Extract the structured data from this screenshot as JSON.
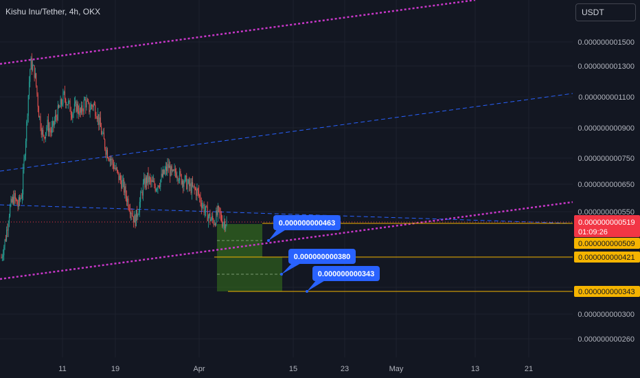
{
  "header": {
    "title": "Kishu Inu/Tether, 4h, OKX"
  },
  "currency_button": {
    "label": "USDT"
  },
  "colors": {
    "background": "#131722",
    "grid": "#1e222d",
    "candle_up": "#26a69a",
    "candle_down": "#ef5350",
    "channel": "#c837c8",
    "midline": "#2962ff",
    "level": "#f5b400",
    "callout": "#2962ff",
    "current_price": "#f23645",
    "target_zone": "#2e5c1e"
  },
  "chart_data": {
    "type": "candlestick",
    "pair": "Kishu Inu/Tether",
    "timeframe": "4h",
    "exchange": "OKX",
    "grid": true,
    "y_tick_labels": [
      "0.000000001500",
      "0.000000001300",
      "0.000000001100",
      "0.000000000900",
      "0.000000000750",
      "0.000000000650",
      "0.000000000550",
      "0.000000000300",
      "0.000000000260"
    ],
    "x_tick_labels": [
      "11",
      "19",
      "Apr",
      "15",
      "23",
      "May",
      "13",
      "21"
    ],
    "current_price": {
      "value": "0.000000000519",
      "countdown": "01:09:26"
    },
    "level_labels": [
      "0.000000000509",
      "0.000000000421",
      "0.000000000343"
    ],
    "callouts": [
      "0.000000000463",
      "0.000000000380",
      "0.000000000343"
    ],
    "price_path": [
      4.2e-10,
      4.7e-10,
      5.6e-10,
      6e-10,
      5.7e-10,
      6.2e-10,
      9e-10,
      1.33e-09,
      1.25e-09,
      9.8e-10,
      8.5e-10,
      9.2e-10,
      8.8e-10,
      9.6e-10,
      1.02e-09,
      1.09e-09,
      1.04e-09,
      9.9e-10,
      1.03e-09,
      9.8e-10,
      1.06e-09,
      1.01e-09,
      1.04e-09,
      9.8e-10,
      8.8e-10,
      8e-10,
      7.6e-10,
      7.2e-10,
      6.8e-10,
      6.5e-10,
      6e-10,
      5.6e-10,
      5.2e-10,
      5.7e-10,
      6.4e-10,
      6.7e-10,
      6.5e-10,
      6.4e-10,
      6.6e-10,
      6.9e-10,
      7.2e-10,
      6.8e-10,
      7e-10,
      6.7e-10,
      6.6e-10,
      6.4e-10,
      6.3e-10,
      6.2e-10,
      5.8e-10,
      5.5e-10,
      5.3e-10,
      5.2e-10,
      5.5e-10,
      5.2e-10,
      5.19e-10
    ]
  }
}
